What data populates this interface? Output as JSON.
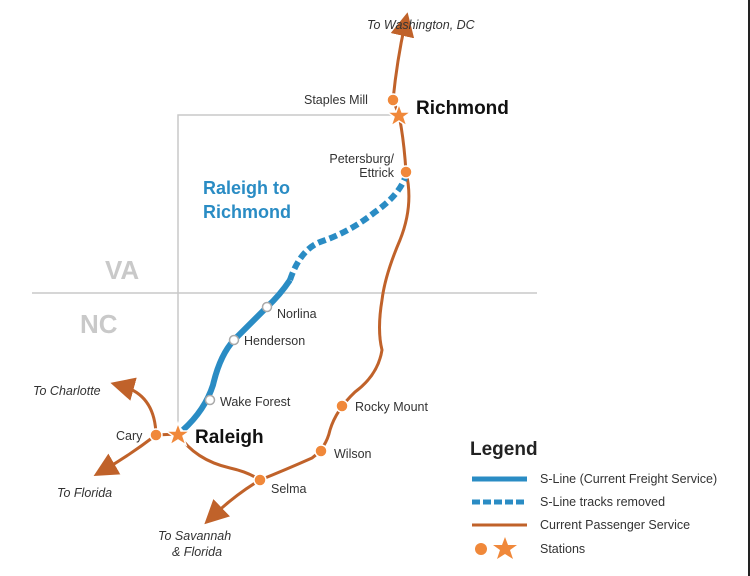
{
  "colors": {
    "s_line": "#2a8cc4",
    "passenger": "#c0622a",
    "station": "#f0883a",
    "border": "#c9c9c9"
  },
  "map_title": "Raleigh to Richmond",
  "map_title_lines": [
    "Raleigh to",
    "Richmond"
  ],
  "states": [
    "VA",
    "NC"
  ],
  "major_cities": [
    "Richmond",
    "Raleigh"
  ],
  "stations": {
    "passenger": [
      "Staples Mill",
      "Petersburg/",
      "Ettrick",
      "Rocky Mount",
      "Wilson",
      "Selma",
      "Cary"
    ],
    "s_line": [
      "Norlina",
      "Henderson",
      "Wake Forest"
    ]
  },
  "destinations": {
    "north": "To Washington, DC",
    "charlotte": "To Charlotte",
    "florida": "To Florida",
    "savannah": [
      "To Savannah",
      "& Florida"
    ]
  },
  "legend": {
    "title": "Legend",
    "items": [
      {
        "label": "S-Line (Current Freight Service)",
        "symbol": "solid-blue-line"
      },
      {
        "label": "S-Line tracks removed",
        "symbol": "dashed-blue-line"
      },
      {
        "label": "Current Passenger Service",
        "symbol": "solid-orange-line"
      },
      {
        "label": "Stations",
        "symbol": "circle-and-star"
      }
    ]
  }
}
